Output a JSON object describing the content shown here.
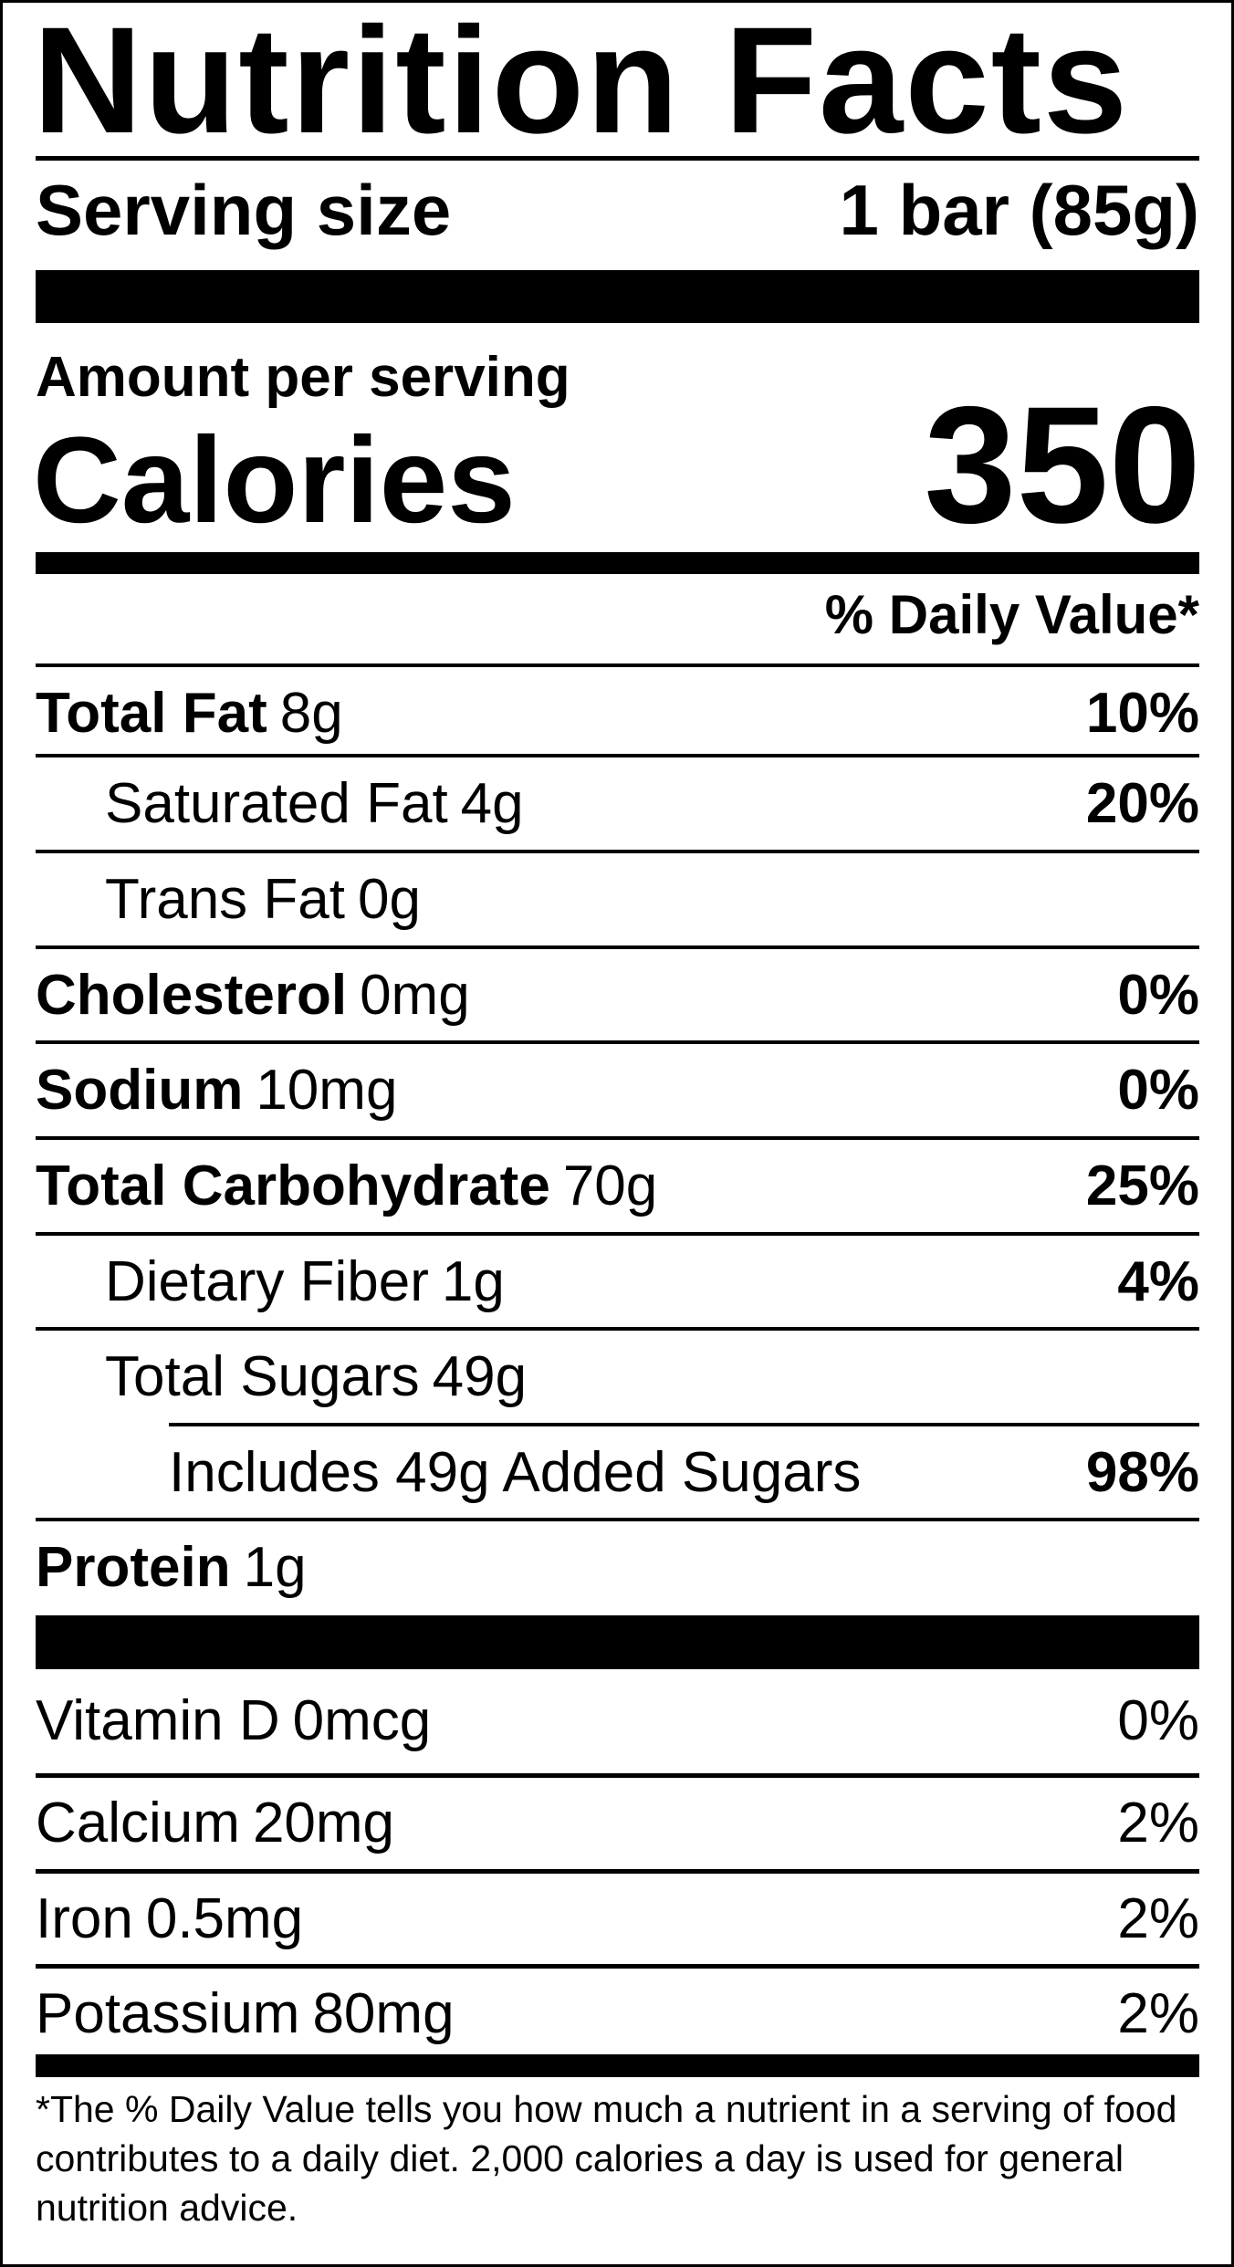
{
  "title": "Nutrition Facts",
  "serving": {
    "label": "Serving size",
    "value": "1 bar (85g)"
  },
  "amount_label": "Amount per serving",
  "calories": {
    "label": "Calories",
    "value": "350"
  },
  "dv_header": "% Daily Value*",
  "nutrients": [
    {
      "name": "Total Fat",
      "amount": "8g",
      "dv": "10%"
    },
    {
      "name": "Saturated Fat",
      "amount": "4g",
      "dv": "20%"
    },
    {
      "name": "Trans Fat",
      "amount": "0g",
      "dv": ""
    },
    {
      "name": "Cholesterol",
      "amount": "0mg",
      "dv": "0%"
    },
    {
      "name": "Sodium",
      "amount": "10mg",
      "dv": "0%"
    },
    {
      "name": "Total Carbohydrate",
      "amount": "70g",
      "dv": "25%"
    },
    {
      "name": "Dietary Fiber",
      "amount": "1g",
      "dv": "4%"
    },
    {
      "name": "Total Sugars",
      "amount": "49g",
      "dv": ""
    },
    {
      "name": "Includes 49g Added Sugars",
      "amount": "",
      "dv": "98%"
    },
    {
      "name": "Protein",
      "amount": "1g",
      "dv": ""
    }
  ],
  "vitamins": [
    {
      "name": "Vitamin D",
      "amount": "0mcg",
      "dv": "0%"
    },
    {
      "name": "Calcium",
      "amount": "20mg",
      "dv": "2%"
    },
    {
      "name": "Iron",
      "amount": "0.5mg",
      "dv": "2%"
    },
    {
      "name": "Potassium",
      "amount": "80mg",
      "dv": "2%"
    }
  ],
  "footnote": "*The % Daily Value tells you how much a nutrient in a serving of food contributes to a daily diet. 2,000 calories a day is used for general nutrition advice."
}
